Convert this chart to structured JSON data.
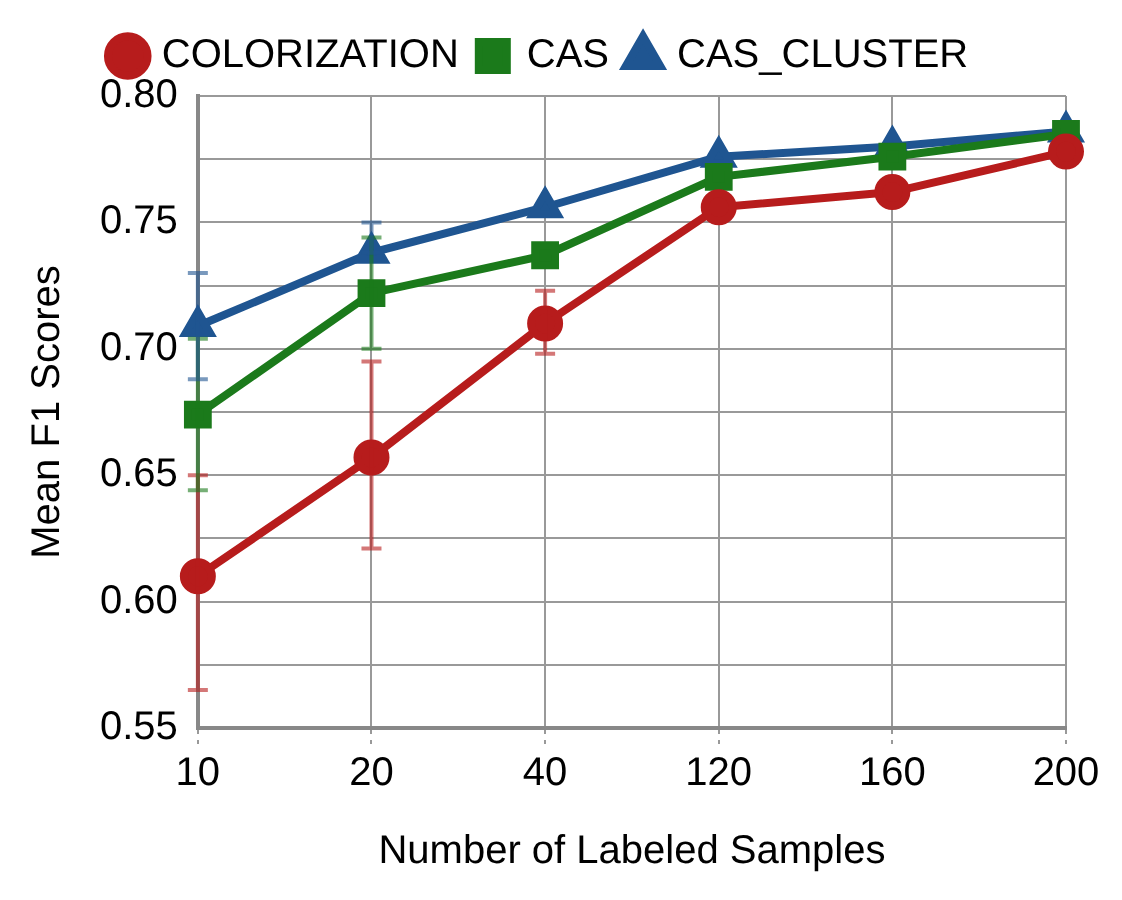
{
  "chart_data": {
    "type": "line",
    "xlabel": "Number of Labeled Samples",
    "ylabel": "Mean F1 Scores",
    "categories": [
      "10",
      "20",
      "40",
      "120",
      "160",
      "200"
    ],
    "series": [
      {
        "name": "COLORIZATION",
        "color": "#b71c1c",
        "marker": "circle",
        "values": [
          0.61,
          0.657,
          0.71,
          0.756,
          0.762,
          0.778
        ],
        "errors": [
          [
            0.565,
            0.65
          ],
          [
            0.621,
            0.695
          ],
          [
            0.698,
            0.723
          ],
          null,
          null,
          null
        ]
      },
      {
        "name": "CAS",
        "color": "#1b7a1b",
        "marker": "square",
        "values": [
          0.674,
          0.722,
          0.737,
          0.768,
          0.776,
          0.785
        ],
        "errors": [
          [
            0.644,
            0.704
          ],
          [
            0.7,
            0.744
          ],
          null,
          null,
          null,
          null
        ]
      },
      {
        "name": "CAS_CLUSTER",
        "color": "#1f5591",
        "marker": "triangle",
        "values": [
          0.709,
          0.738,
          0.756,
          0.776,
          0.78,
          0.786
        ],
        "errors": [
          [
            0.688,
            0.73
          ],
          [
            0.738,
            0.75
          ],
          null,
          null,
          null,
          null
        ]
      }
    ],
    "ylim": [
      0.55,
      0.8
    ],
    "yticks": [
      {
        "value": 0.55,
        "label": "0.55"
      },
      {
        "value": 0.575,
        "label": null
      },
      {
        "value": 0.6,
        "label": "0.60"
      },
      {
        "value": 0.625,
        "label": null
      },
      {
        "value": 0.65,
        "label": "0.65"
      },
      {
        "value": 0.675,
        "label": null
      },
      {
        "value": 0.7,
        "label": "0.70"
      },
      {
        "value": 0.725,
        "label": null
      },
      {
        "value": 0.75,
        "label": "0.75"
      },
      {
        "value": 0.775,
        "label": null
      },
      {
        "value": 0.8,
        "label": "0.80"
      }
    ],
    "grid": true,
    "legend": "top",
    "line_style": "solid"
  }
}
